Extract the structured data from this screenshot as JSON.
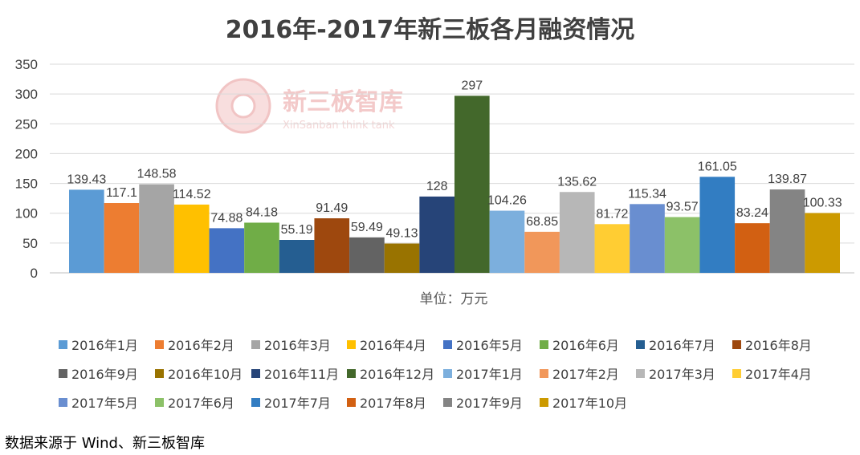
{
  "chart_data": {
    "type": "bar",
    "title": "2016年-2017年新三板各月融资情况",
    "xlabel": "单位：万元",
    "ylabel": "",
    "ylim": [
      0,
      350
    ],
    "yticks": [
      0,
      50,
      100,
      150,
      200,
      250,
      300,
      350
    ],
    "grid": true,
    "legend_position": "bottom",
    "series": [
      {
        "name": "2016年1月",
        "value": 139.43,
        "label": "139.43",
        "color": "#5b9bd5"
      },
      {
        "name": "2016年2月",
        "value": 117.1,
        "label": "117.1",
        "color": "#ed7d31"
      },
      {
        "name": "2016年3月",
        "value": 148.58,
        "label": "148.58",
        "color": "#a5a5a5"
      },
      {
        "name": "2016年4月",
        "value": 114.52,
        "label": "114.52",
        "color": "#ffc000"
      },
      {
        "name": "2016年5月",
        "value": 74.88,
        "label": "74.88",
        "color": "#4472c4"
      },
      {
        "name": "2016年6月",
        "value": 84.18,
        "label": "84.18",
        "color": "#70ad47"
      },
      {
        "name": "2016年7月",
        "value": 55.19,
        "label": "55.19",
        "color": "#255e91"
      },
      {
        "name": "2016年8月",
        "value": 91.49,
        "label": "91.49",
        "color": "#9e480e"
      },
      {
        "name": "2016年9月",
        "value": 59.49,
        "label": "59.49",
        "color": "#636363"
      },
      {
        "name": "2016年10月",
        "value": 49.13,
        "label": "49.13",
        "color": "#997300"
      },
      {
        "name": "2016年11月",
        "value": 128,
        "label": "128",
        "color": "#264478"
      },
      {
        "name": "2016年12月",
        "value": 297,
        "label": "297",
        "color": "#43682b"
      },
      {
        "name": "2017年1月",
        "value": 104.26,
        "label": "104.26",
        "color": "#7cafdd"
      },
      {
        "name": "2017年2月",
        "value": 68.85,
        "label": "68.85",
        "color": "#f1975a"
      },
      {
        "name": "2017年3月",
        "value": 135.62,
        "label": "135.62",
        "color": "#b7b7b7"
      },
      {
        "name": "2017年4月",
        "value": 81.72,
        "label": "81.72",
        "color": "#ffcd33"
      },
      {
        "name": "2017年5月",
        "value": 115.34,
        "label": "115.34",
        "color": "#698ed0"
      },
      {
        "name": "2017年6月",
        "value": 93.57,
        "label": "93.57",
        "color": "#8cc168"
      },
      {
        "name": "2017年7月",
        "value": 161.05,
        "label": "161.05",
        "color": "#327dc2"
      },
      {
        "name": "2017年8月",
        "value": 83.24,
        "label": "83.24",
        "color": "#d26012"
      },
      {
        "name": "2017年9月",
        "value": 139.87,
        "label": "139.87",
        "color": "#848484"
      },
      {
        "name": "2017年10月",
        "value": 100.33,
        "label": "100.33",
        "color": "#cc9a00"
      }
    ]
  },
  "watermark": {
    "text": "新三板智库",
    "subtext": "XinSanban think tank",
    "color": "#e8a0a0"
  },
  "footer": {
    "source": "数据来源于 Wind、新三板智库"
  }
}
